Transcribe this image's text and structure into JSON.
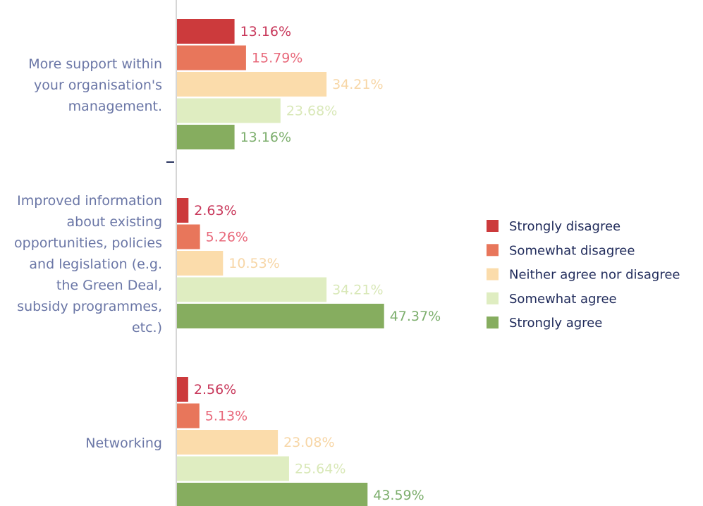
{
  "chart_data": {
    "type": "bar",
    "orientation": "horizontal",
    "categories": [
      "More support within your organisation's management.",
      "Improved information about existing opportunities, policies and legislation (e.g. the Green Deal, subsidy programmes, etc.)",
      "Networking"
    ],
    "series": [
      {
        "name": "Strongly disagree",
        "color": "#cc3a3c",
        "label_color": "#c8375a",
        "values": [
          13.16,
          2.63,
          2.56
        ],
        "value_labels": [
          "13.16%",
          "2.63%",
          "2.56%"
        ]
      },
      {
        "name": "Somewhat disagree",
        "color": "#e8765b",
        "label_color": "#e8687a",
        "values": [
          15.79,
          5.26,
          5.13
        ],
        "value_labels": [
          "15.79%",
          "5.26%",
          "5.13%"
        ]
      },
      {
        "name": "Neither agree nor disagree",
        "color": "#fbdcab",
        "label_color": "#f7d6a6",
        "values": [
          34.21,
          10.53,
          23.08
        ],
        "value_labels": [
          "34.21%",
          "10.53%",
          "23.08%"
        ]
      },
      {
        "name": "Somewhat agree",
        "color": "#dfedc1",
        "label_color": "#d9e8b8",
        "values": [
          23.68,
          34.21,
          25.64
        ],
        "value_labels": [
          "23.68%",
          "34.21%",
          "25.64%"
        ]
      },
      {
        "name": "Strongly agree",
        "color": "#86ad5f",
        "label_color": "#7cae6c",
        "values": [
          13.16,
          47.37,
          43.59
        ],
        "value_labels": [
          "13.16%",
          "47.37%",
          "43.59%"
        ]
      }
    ],
    "legend": "right"
  }
}
